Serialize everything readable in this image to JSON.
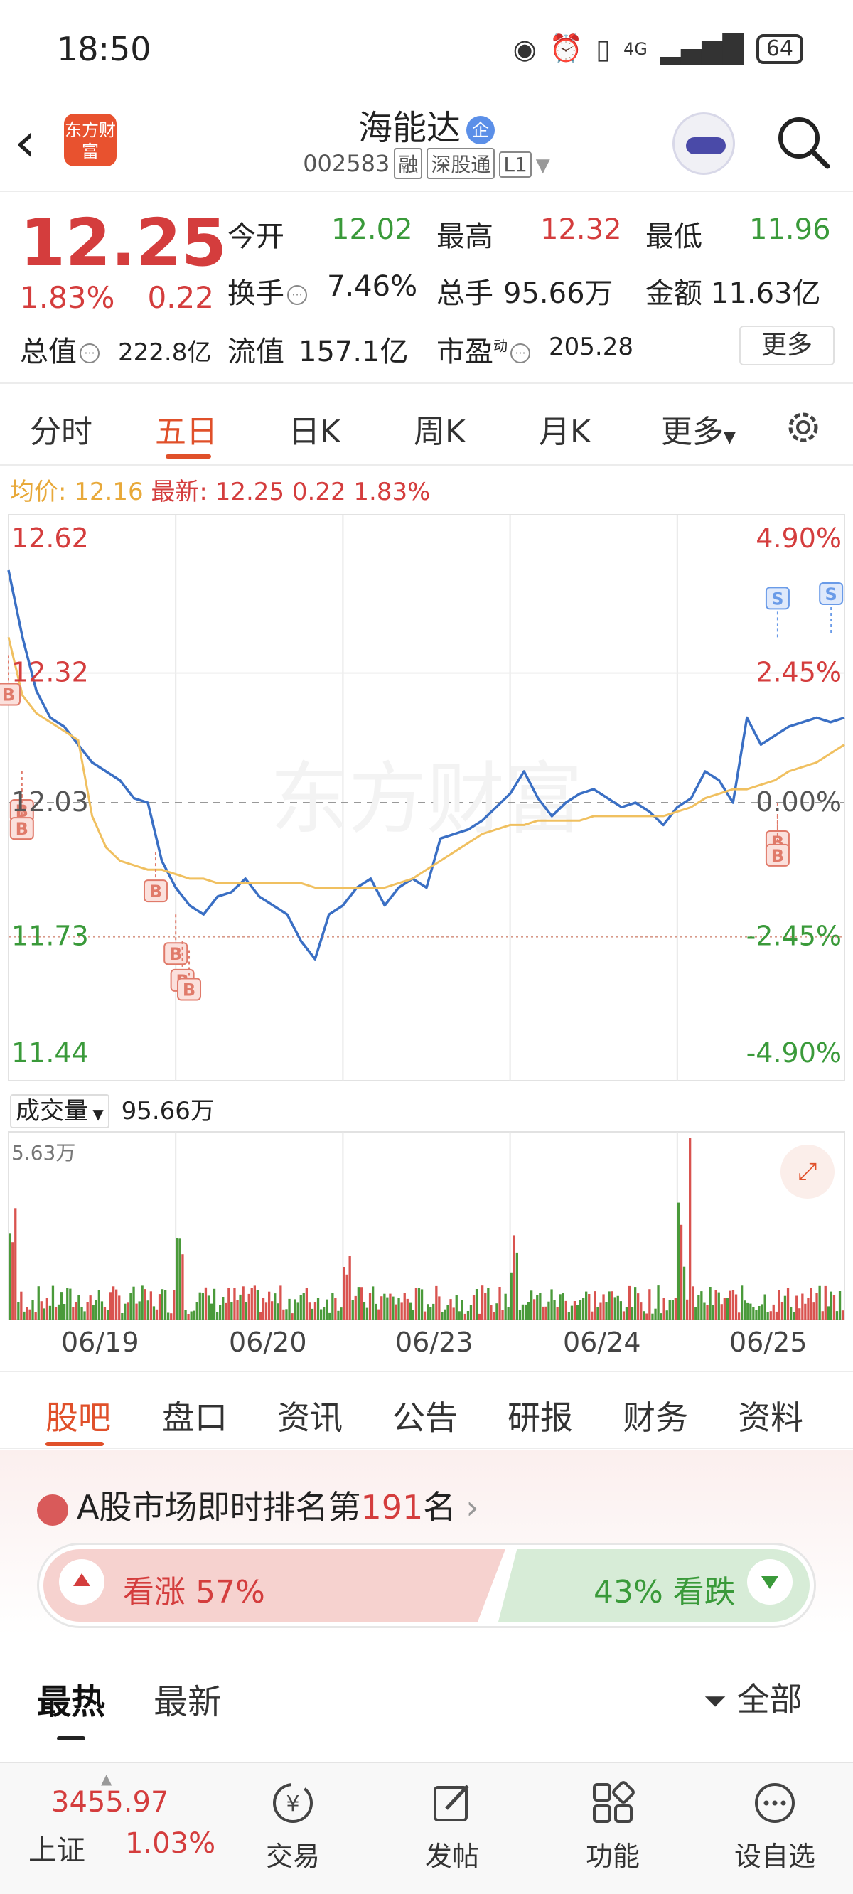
{
  "status_bar": {
    "time": "18:50",
    "network": "4G",
    "battery": "64"
  },
  "header": {
    "logo_text": "东方财富",
    "stock_name": "海能达",
    "name_badge": "企",
    "stock_code": "002583",
    "tags": [
      "融",
      "深股通",
      "L1"
    ]
  },
  "quote": {
    "price": "12.25",
    "change_pct": "1.83%",
    "change_abs": "0.22",
    "open_label": "今开",
    "open": "12.02",
    "high_label": "最高",
    "high": "12.32",
    "low_label": "最低",
    "low": "11.96",
    "turnover_label": "换手",
    "turnover": "7.46%",
    "volume_label": "总手",
    "volume": "95.66万",
    "amount_label": "金额",
    "amount": "11.63亿",
    "total_value_label": "总值",
    "total_value": "222.8亿",
    "float_value_label": "流值",
    "float_value": "157.1亿",
    "pe_label": "市盈",
    "pe_sup": "动",
    "pe": "205.28",
    "more_label": "更多"
  },
  "period_tabs": [
    "分时",
    "五日",
    "日K",
    "周K",
    "月K",
    "更多"
  ],
  "active_period": "五日",
  "avg_line": {
    "avg_label": "均价:",
    "avg_value": "12.16",
    "latest_label": "最新:",
    "latest_value": "12.25",
    "change_abs": "0.22",
    "change_pct": "1.83%"
  },
  "chart_data": {
    "type": "line",
    "y_ticks_left": [
      "12.62",
      "12.32",
      "12.03",
      "11.73",
      "11.44"
    ],
    "y_ticks_right": [
      "4.90%",
      "2.45%",
      "0.00%",
      "-2.45%",
      "-4.90%"
    ],
    "ylim": [
      11.44,
      12.62
    ],
    "prev_close": 12.03,
    "x_labels": [
      "06/19",
      "06/20",
      "06/23",
      "06/24",
      "06/25"
    ],
    "series": [
      {
        "values": [
          12.55,
          12.4,
          12.28,
          12.22,
          12.2,
          12.16,
          12.12,
          12.1,
          12.08,
          12.04,
          12.03,
          11.9,
          11.84,
          11.8,
          11.78,
          11.82,
          11.83,
          11.86,
          11.82,
          11.8,
          11.78,
          11.72,
          11.68,
          11.78,
          11.8,
          11.84,
          11.86,
          11.8,
          11.84,
          11.86,
          11.84,
          11.95,
          11.96,
          11.97,
          11.99,
          12.02,
          12.05,
          12.1,
          12.04,
          12.0,
          12.03,
          12.05,
          12.06,
          12.04,
          12.02,
          12.03,
          12.01,
          11.98,
          12.02,
          12.04,
          12.1,
          12.08,
          12.03,
          12.22,
          12.16,
          12.18,
          12.2,
          12.21,
          12.22,
          12.21,
          12.22
        ]
      },
      {
        "values": [
          12.4,
          12.27,
          12.23,
          12.21,
          12.19,
          12.17,
          12.0,
          11.93,
          11.9,
          11.89,
          11.88,
          11.88,
          11.87,
          11.86,
          11.86,
          11.85,
          11.85,
          11.85,
          11.85,
          11.85,
          11.85,
          11.85,
          11.84,
          11.84,
          11.84,
          11.84,
          11.84,
          11.84,
          11.85,
          11.86,
          11.88,
          11.9,
          11.92,
          11.94,
          11.96,
          11.97,
          11.98,
          11.98,
          11.99,
          11.99,
          11.99,
          11.99,
          12.0,
          12.0,
          12.0,
          12.0,
          12.0,
          12.0,
          12.01,
          12.02,
          12.04,
          12.05,
          12.06,
          12.06,
          12.07,
          12.08,
          12.1,
          12.11,
          12.12,
          12.14,
          12.16
        ]
      }
    ],
    "markers": [
      {
        "label": "B",
        "day": 0.0,
        "price": 12.36
      },
      {
        "label": "B",
        "day": 0.08,
        "price": 12.1
      },
      {
        "label": "B",
        "day": 0.08,
        "price": 12.06
      },
      {
        "label": "B",
        "day": 0.88,
        "price": 11.92
      },
      {
        "label": "B",
        "day": 1.0,
        "price": 11.78
      },
      {
        "label": "B",
        "day": 1.04,
        "price": 11.72
      },
      {
        "label": "B",
        "day": 1.08,
        "price": 11.7
      },
      {
        "label": "B",
        "day": 4.6,
        "price": 12.03
      },
      {
        "label": "B",
        "day": 4.6,
        "price": 12.0
      },
      {
        "label": "S",
        "day": 4.6,
        "price": 12.4
      },
      {
        "label": "S",
        "day": 4.92,
        "price": 12.41
      }
    ],
    "watermark": "东方财富"
  },
  "volume": {
    "selector_label": "成交量",
    "total": "95.66万",
    "max_label": "5.63万"
  },
  "info_tabs": [
    "股吧",
    "盘口",
    "资讯",
    "公告",
    "研报",
    "财务",
    "资料"
  ],
  "active_info_tab": "股吧",
  "ranking": {
    "prefix": "A股市场即时排名第",
    "rank": "191",
    "suffix": "名"
  },
  "vote": {
    "up_label": "看涨 57%",
    "down_label": "43% 看跌",
    "up_pct": 57,
    "down_pct": 43
  },
  "feed_tabs": [
    "最热",
    "最新"
  ],
  "filter_label": "全部",
  "bottom_bar": {
    "index_value": "3455.97",
    "index_name": "上证",
    "index_pct": "1.03%",
    "nav": [
      "交易",
      "发帖",
      "功能",
      "设自选"
    ]
  },
  "colors": {
    "up": "#d43d3d",
    "down": "#3a9a3a",
    "accent": "#e0502a",
    "price_line": "#3a6fc4",
    "avg_line": "#f0c060"
  }
}
